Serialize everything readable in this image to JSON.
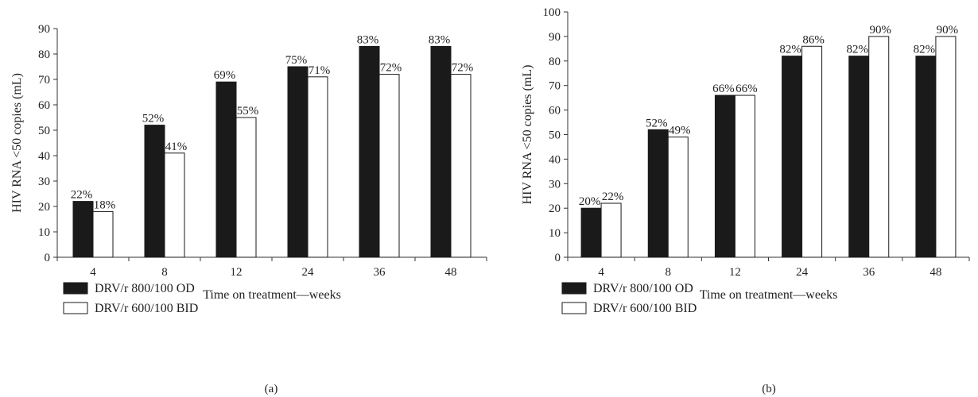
{
  "colors": {
    "od_fill": "#1a1a1a",
    "bid_fill": "#ffffff",
    "stroke": "#1a1a1a"
  },
  "legend": {
    "od_label": "DRV/r 800/100 OD",
    "bid_label": "DRV/r 600/100 BID"
  },
  "chart_data": [
    {
      "type": "bar",
      "panel_label": "(a)",
      "xlabel": "Time on treatment—weeks",
      "ylabel": "HIV RNA <50 copies (mL)",
      "ylim": [
        0,
        90
      ],
      "yticks": [
        0,
        10,
        20,
        30,
        40,
        50,
        60,
        70,
        80,
        90
      ],
      "categories": [
        "4",
        "8",
        "12",
        "24",
        "36",
        "48"
      ],
      "series": [
        {
          "name": "DRV/r 800/100 OD",
          "values": [
            22,
            52,
            69,
            75,
            83,
            83
          ],
          "labels": [
            "22%",
            "52%",
            "69%",
            "75%",
            "83%",
            "83%"
          ]
        },
        {
          "name": "DRV/r 600/100 BID",
          "values": [
            18,
            41,
            55,
            71,
            72,
            72
          ],
          "labels": [
            "18%",
            "41%",
            "55%",
            "71%",
            "72%",
            "72%"
          ]
        }
      ],
      "grid": false,
      "legend_position": "bottom-left"
    },
    {
      "type": "bar",
      "panel_label": "(b)",
      "xlabel": "Time on treatment—weeks",
      "ylabel": "HIV RNA <50 copies (mL)",
      "ylim": [
        0,
        100
      ],
      "yticks": [
        0,
        10,
        20,
        30,
        40,
        50,
        60,
        70,
        80,
        90,
        100
      ],
      "categories": [
        "4",
        "8",
        "12",
        "24",
        "36",
        "48"
      ],
      "series": [
        {
          "name": "DRV/r 800/100 OD",
          "values": [
            20,
            52,
            66,
            82,
            82,
            82
          ],
          "labels": [
            "20%",
            "52%",
            "66%",
            "82%",
            "82%",
            "82%"
          ]
        },
        {
          "name": "DRV/r 600/100 BID",
          "values": [
            22,
            49,
            66,
            86,
            90,
            90
          ],
          "labels": [
            "22%",
            "49%",
            "66%",
            "86%",
            "90%",
            "90%"
          ]
        }
      ],
      "grid": false,
      "legend_position": "bottom-left"
    }
  ]
}
